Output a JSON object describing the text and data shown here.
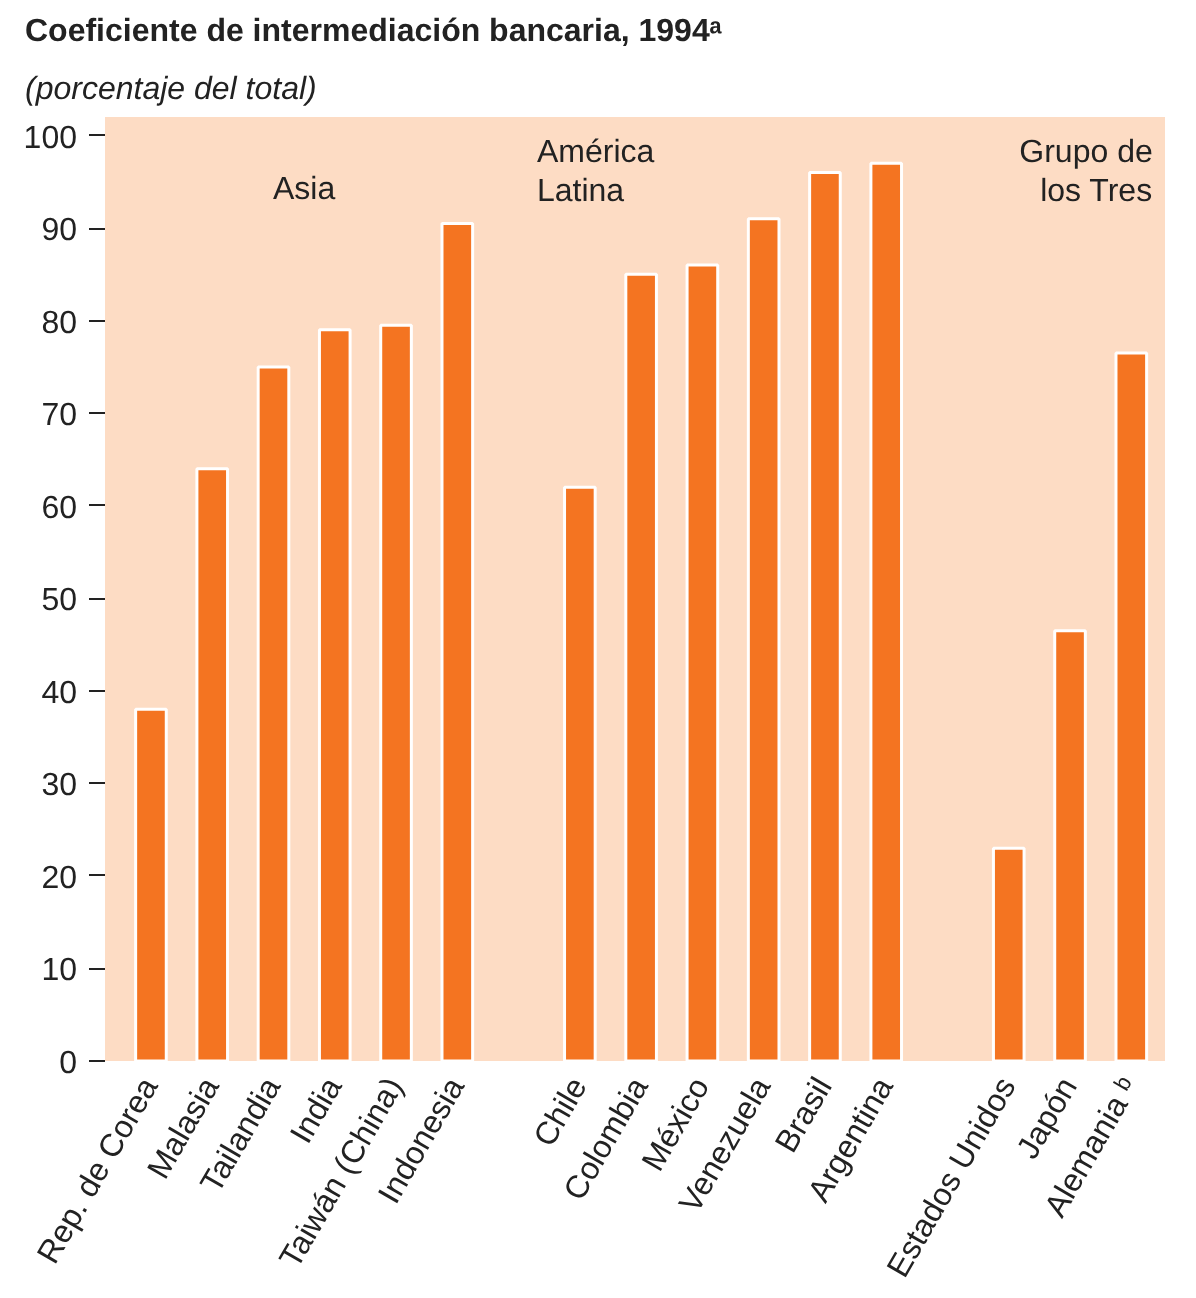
{
  "chart_data": {
    "type": "bar",
    "title": "Coeficiente de intermediación bancaria, 1994ᵃ",
    "subtitle": "(porcentaje del total)",
    "categories": [
      "Rep. de Corea",
      "Malasia",
      "Tailandia",
      "India",
      "Taiwán (China)",
      "Indonesia",
      null,
      "Chile",
      "Colombia",
      "México",
      "Venezuela",
      "Brasil",
      "Argentina",
      null,
      "Estados Unidos",
      "Japón",
      "Alemania ᵇ"
    ],
    "values": [
      38,
      64,
      75,
      79,
      79.5,
      90.5,
      null,
      62,
      85,
      86,
      91,
      96,
      97,
      null,
      23,
      46.5,
      76.5
    ],
    "color": "#f47421",
    "annotations": [
      "Asia",
      "América\nLatina",
      "Grupo de\nlos Tres"
    ],
    "ylim": [
      0,
      102
    ],
    "yticks": [
      0,
      10,
      20,
      30,
      40,
      50,
      60,
      70,
      80,
      90,
      100
    ],
    "grid": false
  }
}
